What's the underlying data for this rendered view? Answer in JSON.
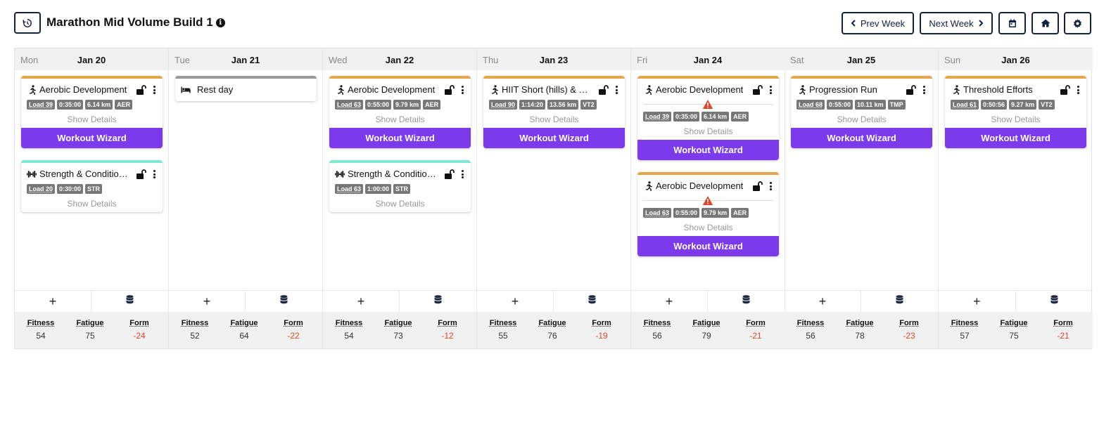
{
  "header": {
    "history_icon": "history-icon",
    "title": "Marathon Mid Volume Build 1",
    "info_icon": "info-icon",
    "info_glyph": "i",
    "prev_week": "Prev Week",
    "next_week": "Next Week",
    "calendar_icon": "calendar-icon",
    "home_icon": "home-icon",
    "settings_icon": "gear-icon"
  },
  "colors": {
    "aerobic": "#e7a54a",
    "strength": "#7ee8d3",
    "rest": "#999999",
    "wizard": "#7c3aed",
    "negative": "#e0452b",
    "warning": "#e0452b"
  },
  "labels": {
    "show_details": "Show Details",
    "workout_wizard": "Workout Wizard",
    "fitness": "Fitness",
    "fatigue": "Fatigue",
    "form": "Form"
  },
  "days": [
    {
      "dow": "Mon",
      "date": "Jan 20",
      "fitness": "54",
      "fatigue": "75",
      "form": "-24",
      "workouts": [
        {
          "title": "Aerobic Development",
          "type": "run",
          "color": "aerobic",
          "tags": [
            "Load 39",
            "0:35:00",
            "6.14 km",
            "AER"
          ],
          "warning": false,
          "wizard": true
        },
        {
          "title": "Strength & Conditioning",
          "type": "strength",
          "color": "strength",
          "tags": [
            "Load 20",
            "0:30:00",
            "STR"
          ],
          "warning": false,
          "wizard": false
        }
      ]
    },
    {
      "dow": "Tue",
      "date": "Jan 21",
      "fitness": "52",
      "fatigue": "64",
      "form": "-22",
      "workouts": [
        {
          "title": "Rest day",
          "type": "rest",
          "color": "rest",
          "tags": [],
          "warning": false,
          "wizard": false
        }
      ]
    },
    {
      "dow": "Wed",
      "date": "Jan 22",
      "fitness": "54",
      "fatigue": "73",
      "form": "-12",
      "workouts": [
        {
          "title": "Aerobic Development",
          "type": "run",
          "color": "aerobic",
          "tags": [
            "Load 63",
            "0:55:00",
            "9.79 km",
            "AER"
          ],
          "warning": false,
          "wizard": true
        },
        {
          "title": "Strength & Conditioning",
          "type": "strength",
          "color": "strength",
          "tags": [
            "Load 63",
            "1:00:00",
            "STR"
          ],
          "warning": false,
          "wizard": false
        }
      ]
    },
    {
      "dow": "Thu",
      "date": "Jan 23",
      "fitness": "55",
      "fatigue": "76",
      "form": "-19",
      "workouts": [
        {
          "title": "HIIT Short (hills) & MIT",
          "type": "run",
          "color": "aerobic",
          "tags": [
            "Load 90",
            "1:14:20",
            "13.56 km",
            "VT2"
          ],
          "warning": false,
          "wizard": true
        }
      ]
    },
    {
      "dow": "Fri",
      "date": "Jan 24",
      "fitness": "56",
      "fatigue": "79",
      "form": "-21",
      "workouts": [
        {
          "title": "Aerobic Development",
          "type": "run",
          "color": "aerobic",
          "tags": [
            "Load 39",
            "0:35:00",
            "6.14 km",
            "AER"
          ],
          "warning": true,
          "wizard": true
        },
        {
          "title": "Aerobic Development",
          "type": "run",
          "color": "aerobic",
          "tags": [
            "Load 63",
            "0:55:00",
            "9.79 km",
            "AER"
          ],
          "warning": true,
          "wizard": true
        }
      ]
    },
    {
      "dow": "Sat",
      "date": "Jan 25",
      "fitness": "56",
      "fatigue": "78",
      "form": "-23",
      "workouts": [
        {
          "title": "Progression Run",
          "type": "run",
          "color": "aerobic",
          "tags": [
            "Load 68",
            "0:55:00",
            "10.11 km",
            "TMP"
          ],
          "warning": false,
          "wizard": true
        }
      ]
    },
    {
      "dow": "Sun",
      "date": "Jan 26",
      "fitness": "57",
      "fatigue": "75",
      "form": "-21",
      "workouts": [
        {
          "title": "Threshold Efforts",
          "type": "run",
          "color": "aerobic",
          "tags": [
            "Load 61",
            "0:50:56",
            "9.27 km",
            "VT2"
          ],
          "warning": false,
          "wizard": true
        }
      ]
    }
  ],
  "day_actions": {
    "add_glyph": "+",
    "add_icon": "plus-icon",
    "library_icon": "database-icon"
  }
}
